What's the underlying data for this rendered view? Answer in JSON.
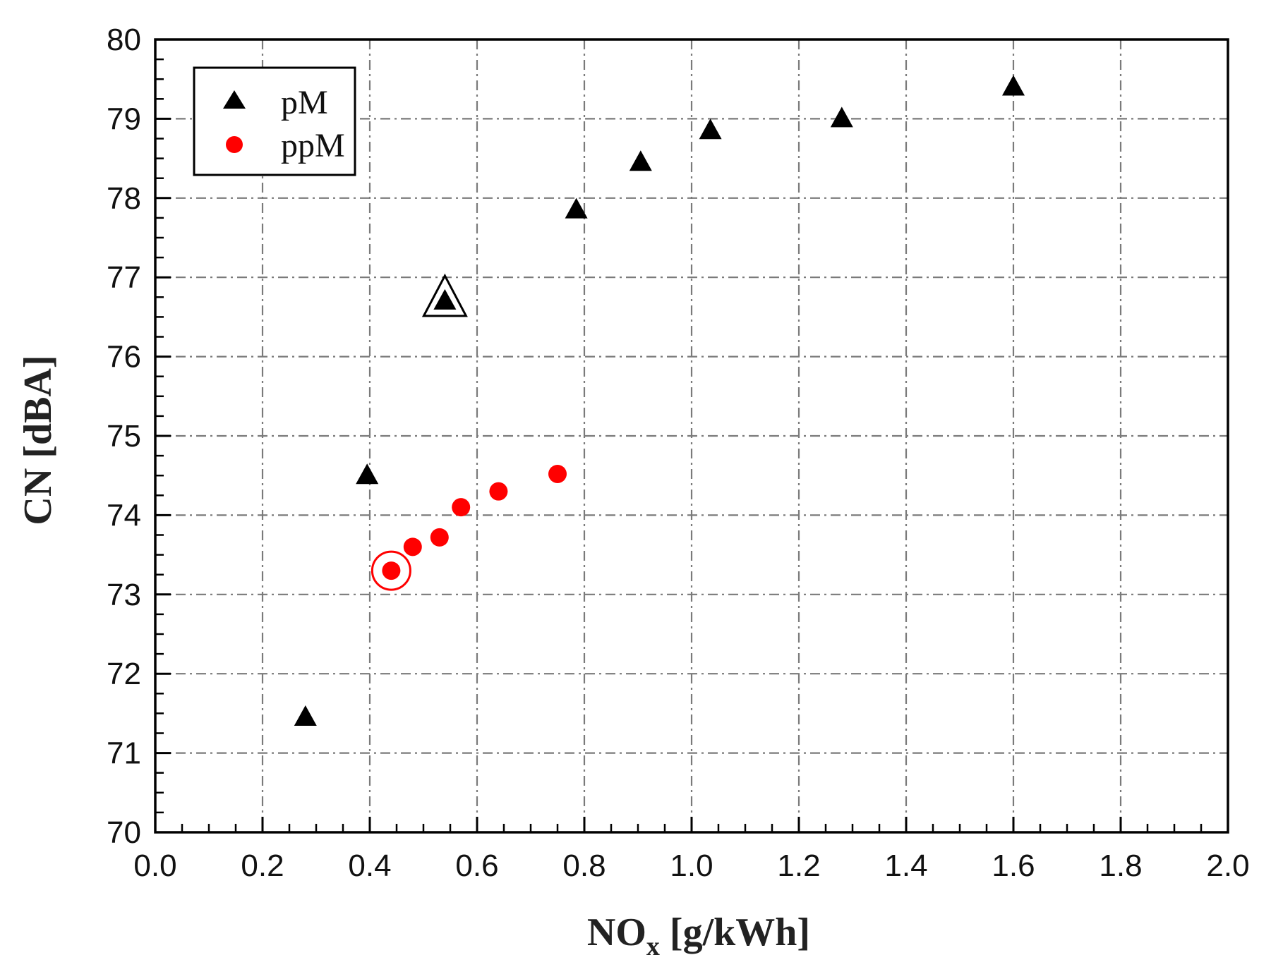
{
  "chart_data": {
    "type": "scatter",
    "title": "",
    "xlabel_main": "NO",
    "xlabel_sub": "x",
    "xlabel_unit": " [g/kWh]",
    "ylabel": "CN [dBA]",
    "xlim": [
      0.0,
      2.0
    ],
    "ylim": [
      70,
      80
    ],
    "x_ticks": [
      "0.0",
      "0.2",
      "0.4",
      "0.6",
      "0.8",
      "1.0",
      "1.2",
      "1.4",
      "1.6",
      "1.8",
      "2.0"
    ],
    "y_ticks": [
      "70",
      "71",
      "72",
      "73",
      "74",
      "75",
      "76",
      "77",
      "78",
      "79",
      "80"
    ],
    "grid": true,
    "legend_position": "top-left",
    "series": [
      {
        "name": "pM",
        "marker": "triangle",
        "color": "#000000",
        "x": [
          0.28,
          0.395,
          0.54,
          0.785,
          0.905,
          1.035,
          1.28,
          1.6
        ],
        "y": [
          71.45,
          74.5,
          76.7,
          77.85,
          78.45,
          78.85,
          79.0,
          79.4
        ],
        "highlighted_index": 2
      },
      {
        "name": "ppM",
        "marker": "circle",
        "color": "#ff0000",
        "x": [
          0.44,
          0.48,
          0.53,
          0.57,
          0.64,
          0.75
        ],
        "y": [
          73.3,
          73.6,
          73.72,
          74.1,
          74.3,
          74.52
        ],
        "highlighted_index": 0
      }
    ]
  }
}
